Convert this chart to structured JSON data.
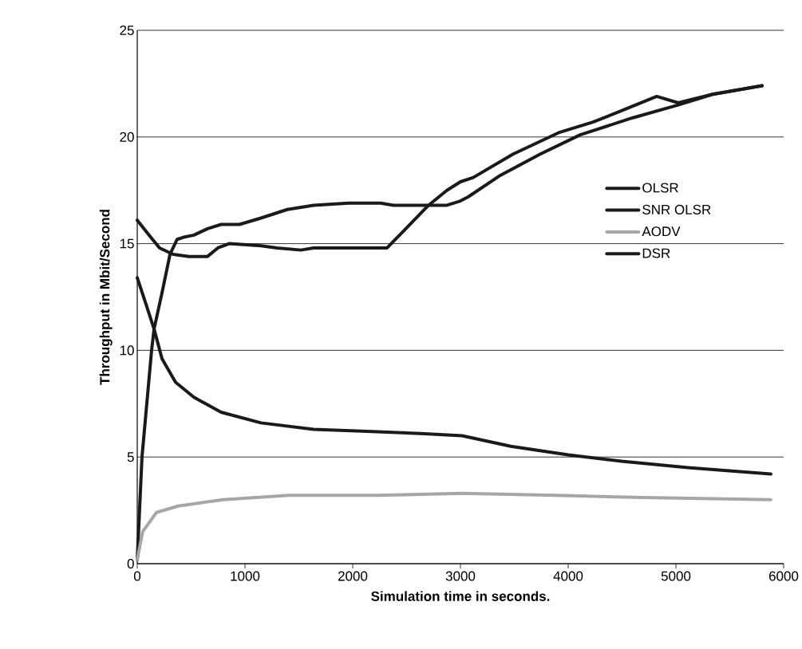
{
  "chart_data": {
    "type": "line",
    "xlabel": "Simulation time in seconds.",
    "ylabel": "Throughput in Mbit/Second",
    "xlim": [
      0,
      6000
    ],
    "xticks": [
      0,
      1000,
      2000,
      3000,
      4000,
      5000,
      6000
    ],
    "ylim": [
      0,
      25
    ],
    "yticks": [
      0,
      5,
      10,
      15,
      20,
      25
    ],
    "grid": "y",
    "legend": "right",
    "marker": "none",
    "line_style": "solid",
    "series": [
      {
        "name": "OLSR",
        "color": "#1a1a1a",
        "x": [
          0,
          110,
          207,
          333,
          481,
          652,
          748,
          852,
          1148,
          1296,
          1519,
          1637,
          2133,
          2319,
          2704,
          2874,
          3000,
          3119,
          3489,
          3911,
          4230,
          4481,
          4822,
          5022,
          5341,
          5800
        ],
        "values": [
          16.1,
          15.4,
          14.8,
          14.5,
          14.4,
          14.4,
          14.8,
          15.0,
          14.9,
          14.8,
          14.7,
          14.8,
          14.8,
          14.8,
          16.8,
          17.5,
          17.9,
          18.1,
          19.2,
          20.2,
          20.7,
          21.2,
          21.9,
          21.6,
          22.0,
          22.4
        ]
      },
      {
        "name": "SNR OLSR",
        "color": "#1a1a1a",
        "x": [
          0,
          44,
          133,
          156,
          230,
          304,
          370,
          430,
          526,
          652,
          778,
          948,
          1148,
          1393,
          1637,
          1963,
          2259,
          2378,
          2704,
          2874,
          3000,
          3074,
          3370,
          3741,
          4111,
          4600,
          5022,
          5341,
          5800
        ],
        "values": [
          0.2,
          5.0,
          10.0,
          11.0,
          12.7,
          14.5,
          15.2,
          15.3,
          15.4,
          15.7,
          15.9,
          15.9,
          16.2,
          16.6,
          16.8,
          16.9,
          16.9,
          16.8,
          16.8,
          16.8,
          17.0,
          17.2,
          18.2,
          19.2,
          20.1,
          20.9,
          21.5,
          22.0,
          22.4
        ]
      },
      {
        "name": "AODV",
        "color": "#a6a6a6",
        "x": [
          0,
          50,
          178,
          378,
          793,
          1407,
          2230,
          3015,
          3881,
          4704,
          5881
        ],
        "values": [
          0.2,
          1.5,
          2.4,
          2.7,
          3.0,
          3.2,
          3.2,
          3.3,
          3.2,
          3.1,
          3.0
        ]
      },
      {
        "name": "DSR",
        "color": "#1a1a1a",
        "x": [
          0,
          85,
          156,
          230,
          356,
          526,
          778,
          1148,
          1637,
          2133,
          2630,
          3015,
          3467,
          4000,
          4496,
          5111,
          5881
        ],
        "values": [
          13.4,
          12.1,
          11.0,
          9.6,
          8.5,
          7.8,
          7.1,
          6.6,
          6.3,
          6.2,
          6.1,
          6.0,
          5.5,
          5.1,
          4.8,
          4.5,
          4.2
        ]
      }
    ]
  }
}
